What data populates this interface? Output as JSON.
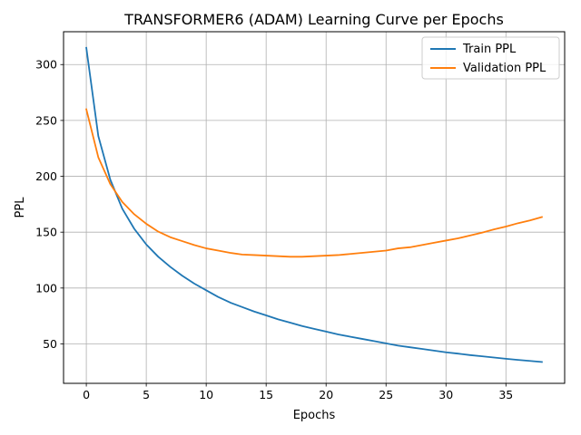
{
  "chart_data": {
    "type": "line",
    "title": "TRANSFORMER6 (ADAM) Learning Curve per Epochs",
    "xlabel": "Epochs",
    "ylabel": "PPL",
    "xlim": [
      -1.9,
      39.9
    ],
    "ylim": [
      14.7,
      329.4
    ],
    "xticks": [
      0,
      5,
      10,
      15,
      20,
      25,
      30,
      35
    ],
    "yticks": [
      50,
      100,
      150,
      200,
      250,
      300
    ],
    "grid": true,
    "legend": "top-right",
    "x": [
      0,
      1,
      2,
      3,
      4,
      5,
      6,
      7,
      8,
      9,
      10,
      11,
      12,
      13,
      14,
      15,
      16,
      17,
      18,
      19,
      20,
      21,
      22,
      23,
      24,
      25,
      26,
      27,
      28,
      29,
      30,
      31,
      32,
      33,
      34,
      35,
      36,
      37,
      38
    ],
    "series": [
      {
        "name": "Train PPL",
        "color": "#1f77b4",
        "values": [
          315,
          236,
          197,
          171,
          153,
          139,
          128,
          119,
          111,
          104,
          98,
          92,
          87,
          83,
          79,
          75.5,
          72,
          69,
          66,
          63.5,
          61,
          58.5,
          56.5,
          54.5,
          52.5,
          50.5,
          48.5,
          47,
          45.5,
          44,
          42.5,
          41.3,
          40,
          38.9,
          37.8,
          36.7,
          35.7,
          34.8,
          33.8
        ]
      },
      {
        "name": "Validation PPL",
        "color": "#ff7f0e",
        "values": [
          260,
          217,
          193,
          177,
          166,
          157.5,
          150.5,
          145.5,
          142,
          138.5,
          135.5,
          133.5,
          131.5,
          130,
          129.5,
          129,
          128.5,
          128,
          128,
          128.5,
          129,
          129.5,
          130.5,
          131.5,
          132.5,
          133.5,
          135.5,
          136.5,
          138.5,
          140.5,
          142.5,
          144.5,
          147,
          149.5,
          152.5,
          155,
          158,
          160.5,
          163.5
        ]
      }
    ]
  }
}
